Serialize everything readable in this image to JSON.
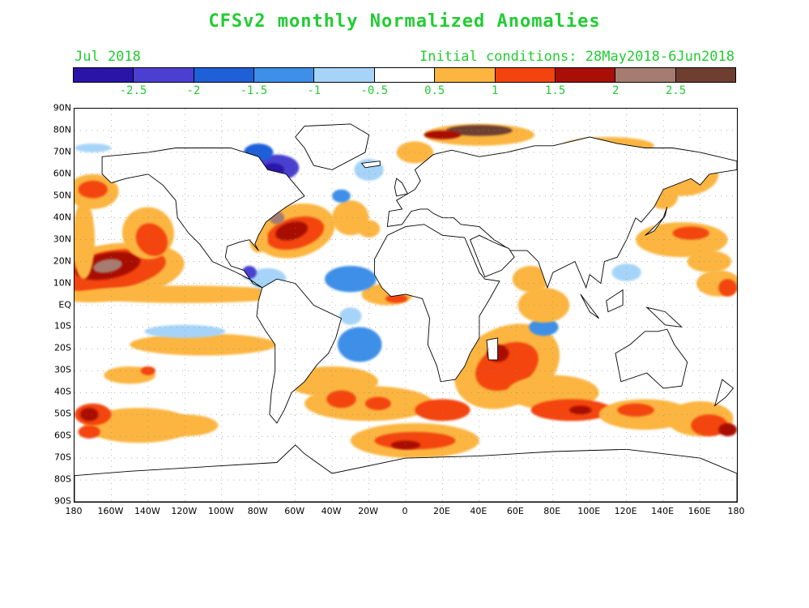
{
  "title": "CFSv2 monthly Normalized Anomalies",
  "subtitle_left": "Jul 2018",
  "subtitle_right": "Initial conditions: 28May2018-6Jun2018",
  "colorbar": {
    "colors": [
      "#2a14a8",
      "#4a3fd0",
      "#1f5fd8",
      "#3e8fe8",
      "#a6d4f8",
      "#ffffff",
      "#fbb540",
      "#f3440f",
      "#a80f06",
      "#a67c70",
      "#6e3f31"
    ],
    "labels": [
      "-2.5",
      "-2",
      "-1.5",
      "-1",
      "-0.5",
      "0.5",
      "1",
      "1.5",
      "2",
      "2.5"
    ]
  },
  "axes": {
    "lat_labels": [
      "90N",
      "80N",
      "70N",
      "60N",
      "50N",
      "40N",
      "30N",
      "20N",
      "10N",
      "EQ",
      "10S",
      "20S",
      "30S",
      "40S",
      "50S",
      "60S",
      "70S",
      "80S",
      "90S"
    ],
    "lon_labels": [
      "180",
      "160W",
      "140W",
      "120W",
      "100W",
      "80W",
      "60W",
      "40W",
      "20W",
      "0",
      "20E",
      "40E",
      "60E",
      "80E",
      "100E",
      "120E",
      "140E",
      "160E",
      "180"
    ]
  }
}
